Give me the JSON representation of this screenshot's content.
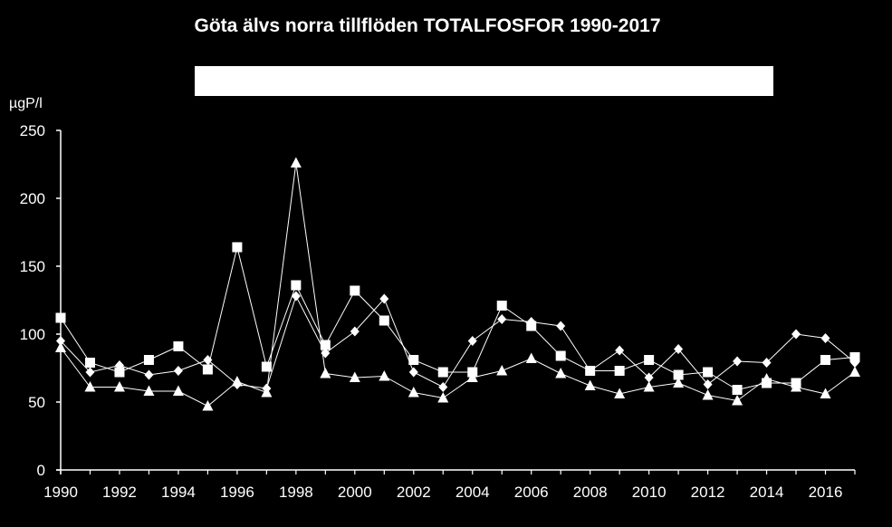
{
  "chart_data": {
    "type": "line",
    "title": "Göta älvs norra tillflöden TOTALFOSFOR 1990-2017",
    "ylabel": "µgP/l",
    "xlabel": "",
    "xlim": [
      1990,
      2017
    ],
    "ylim": [
      0,
      250
    ],
    "yticks": [
      0,
      50,
      100,
      150,
      200,
      250
    ],
    "xticks": [
      1990,
      1992,
      1994,
      1996,
      1998,
      2000,
      2002,
      2004,
      2006,
      2008,
      2010,
      2012,
      2014,
      2016
    ],
    "x": [
      1990,
      1991,
      1992,
      1993,
      1994,
      1995,
      1996,
      1997,
      1998,
      1999,
      2000,
      2001,
      2002,
      2003,
      2004,
      2005,
      2006,
      2007,
      2008,
      2009,
      2010,
      2011,
      2012,
      2013,
      2014,
      2015,
      2016,
      2017
    ],
    "legend": "white box above plot (entries not legible)",
    "grid": false,
    "series": [
      {
        "marker": "square",
        "values": [
          112,
          79,
          72,
          81,
          91,
          74,
          164,
          76,
          136,
          92,
          132,
          110,
          81,
          72,
          72,
          121,
          106,
          84,
          73,
          73,
          81,
          70,
          72,
          59,
          64,
          64,
          81,
          83
        ]
      },
      {
        "marker": "diamond",
        "values": [
          95,
          72,
          77,
          70,
          73,
          81,
          63,
          60,
          128,
          86,
          102,
          126,
          72,
          61,
          95,
          111,
          109,
          106,
          73,
          88,
          68,
          89,
          63,
          80,
          79,
          100,
          97,
          79
        ]
      },
      {
        "marker": "triangle",
        "values": [
          90,
          61,
          61,
          58,
          58,
          47,
          65,
          57,
          226,
          71,
          68,
          69,
          57,
          53,
          68,
          73,
          82,
          71,
          62,
          56,
          61,
          64,
          55,
          51,
          67,
          61,
          56,
          72
        ]
      }
    ]
  }
}
